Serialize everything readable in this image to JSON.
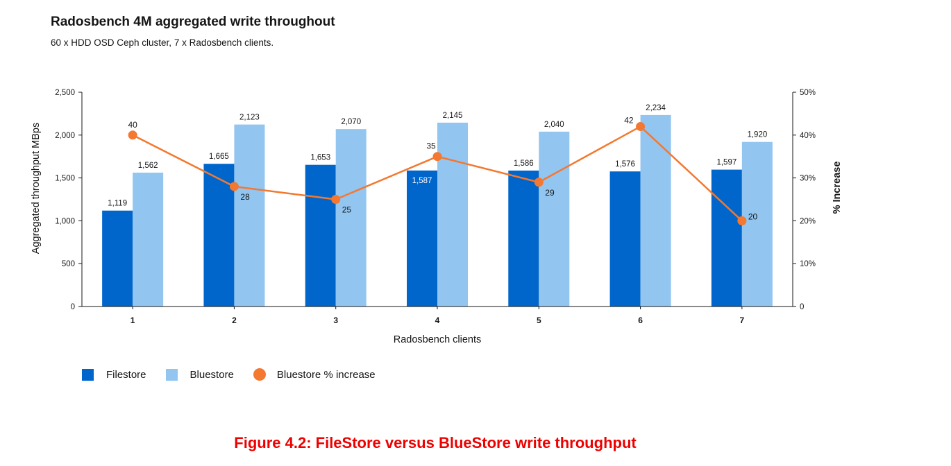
{
  "title": "Radosbench 4M aggregated write throughout",
  "subtitle": "60 x HDD OSD Ceph cluster, 7 x Radosbench clients.",
  "caption": "Figure 4.2: FileStore versus BlueStore write throughput",
  "colors": {
    "filestore": "#0066cc",
    "bluestore": "#92c5f0",
    "increase": "#f4782f",
    "axis": "#151515"
  },
  "chart_data": {
    "type": "bar",
    "xlabel": "Radosbench clients",
    "ylabel": "Aggregated throughput MBps",
    "y2label": "% Increase",
    "categories": [
      "1",
      "2",
      "3",
      "4",
      "5",
      "6",
      "7"
    ],
    "ylim": [
      0,
      2500
    ],
    "yticks": [
      0,
      500,
      1000,
      1500,
      2000,
      2500
    ],
    "ytick_labels": [
      "0",
      "500",
      "1,000",
      "1,500",
      "2,000",
      "2,500"
    ],
    "y2lim": [
      0,
      50
    ],
    "y2ticks": [
      0,
      10,
      20,
      30,
      40,
      50
    ],
    "y2tick_labels": [
      "0",
      "10%",
      "20%",
      "30%",
      "40%",
      "50%"
    ],
    "legend_position": "bottom-left",
    "series": [
      {
        "name": "Filestore",
        "type": "bar",
        "values": [
          1119,
          1665,
          1653,
          1587,
          1586,
          1576,
          1597
        ],
        "labels": [
          "1,119",
          "1,665",
          "1,653",
          "1,587",
          "1,586",
          "1,576",
          "1,597"
        ]
      },
      {
        "name": "Bluestore",
        "type": "bar",
        "values": [
          1562,
          2123,
          2070,
          2145,
          2040,
          2234,
          1920
        ],
        "labels": [
          "1,562",
          "2,123",
          "2,070",
          "2,145",
          "2,040",
          "2,234",
          "1,920"
        ]
      },
      {
        "name": "Bluestore % increase",
        "type": "line",
        "axis": "right",
        "values": [
          40,
          28,
          25,
          35,
          29,
          42,
          20
        ],
        "labels": [
          "40",
          "28",
          "25",
          "35",
          "29",
          "42",
          "20"
        ]
      }
    ]
  }
}
